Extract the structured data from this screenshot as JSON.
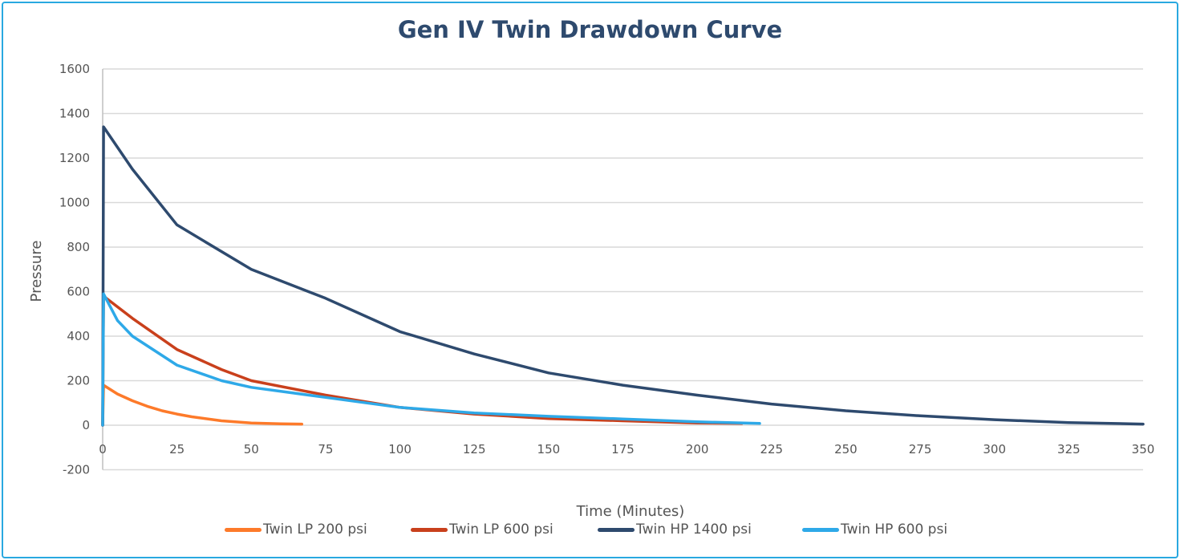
{
  "chart_data": {
    "type": "line",
    "title": "Gen IV Twin Drawdown Curve",
    "xlabel": "Time (Minutes)",
    "ylabel": "Pressure",
    "xlim": [
      0,
      350
    ],
    "ylim": [
      -200,
      1600
    ],
    "xticks": [
      0,
      25,
      50,
      75,
      100,
      125,
      150,
      175,
      200,
      225,
      250,
      275,
      300,
      325,
      350
    ],
    "yticks": [
      -200,
      0,
      200,
      400,
      600,
      800,
      1000,
      1200,
      1400,
      1600
    ],
    "grid": "horizontal",
    "legend": "bottom",
    "series": [
      {
        "name": "Twin LP 200 psi",
        "color": "#fd7a2a",
        "x": [
          0,
          0.3,
          5,
          10,
          15,
          20,
          25,
          30,
          40,
          50,
          60,
          67
        ],
        "y": [
          0,
          180,
          140,
          110,
          85,
          65,
          50,
          38,
          20,
          10,
          6,
          5
        ]
      },
      {
        "name": "Twin LP 600 psi",
        "color": "#c9401c",
        "x": [
          0,
          0.3,
          10,
          25,
          40,
          50,
          75,
          100,
          125,
          150,
          175,
          200,
          215
        ],
        "y": [
          0,
          580,
          480,
          340,
          250,
          200,
          135,
          80,
          50,
          30,
          20,
          10,
          8
        ]
      },
      {
        "name": "Twin HP 1400 psi",
        "color": "#2e4a6e",
        "x": [
          0,
          0.3,
          10,
          25,
          50,
          75,
          100,
          125,
          150,
          175,
          200,
          225,
          250,
          275,
          300,
          325,
          350
        ],
        "y": [
          0,
          1340,
          1150,
          900,
          700,
          570,
          420,
          320,
          235,
          180,
          135,
          95,
          65,
          42,
          25,
          12,
          5
        ]
      },
      {
        "name": "Twin HP 600 psi",
        "color": "#2ea9e8",
        "x": [
          0,
          0.3,
          5,
          10,
          25,
          40,
          50,
          75,
          100,
          125,
          150,
          175,
          200,
          221
        ],
        "y": [
          0,
          590,
          470,
          400,
          270,
          200,
          170,
          125,
          80,
          55,
          40,
          28,
          15,
          8
        ]
      }
    ]
  }
}
